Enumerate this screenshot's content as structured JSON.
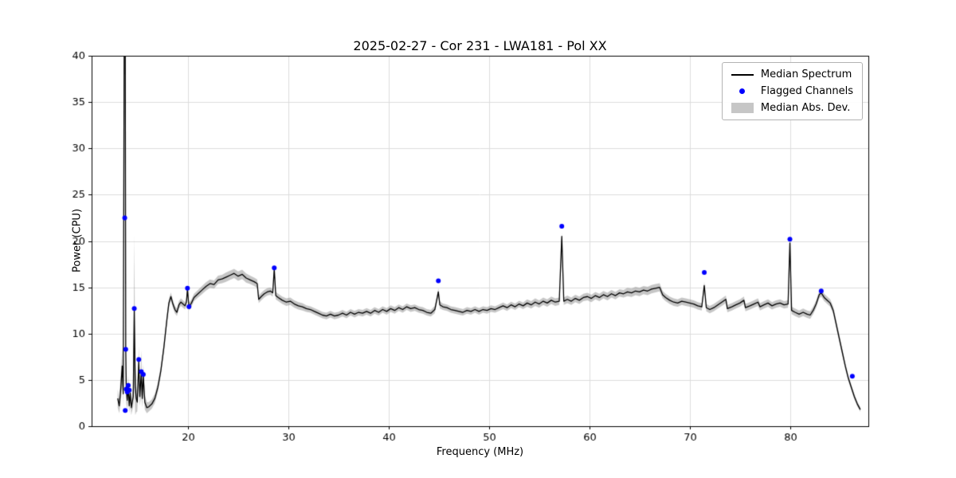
{
  "chart_data": {
    "type": "line",
    "title": "2025-02-27 - Cor 231 - LWA181 - Pol XX",
    "xlabel": "Frequency (MHz)",
    "ylabel": "Power (CPU)",
    "xlim": [
      10.4,
      87.8
    ],
    "ylim": [
      0,
      40
    ],
    "x_ticks": [
      20,
      30,
      40,
      50,
      60,
      70,
      80
    ],
    "y_ticks": [
      0,
      5,
      10,
      15,
      20,
      25,
      30,
      35,
      40
    ],
    "grid": true,
    "grid_color": "#dcdcdc",
    "spine_color": "#000000",
    "median_spectrum": {
      "name": "Median Spectrum",
      "color": "#000000",
      "points": [
        [
          13.0,
          3.0,
          1.0
        ],
        [
          13.15,
          2.2,
          0.8
        ],
        [
          13.3,
          4.0,
          1.5
        ],
        [
          13.45,
          6.5,
          2.0
        ],
        [
          13.55,
          3.5,
          1.2
        ],
        [
          13.65,
          42,
          4
        ],
        [
          13.75,
          42,
          4
        ],
        [
          13.8,
          8.3,
          2.0
        ],
        [
          13.85,
          4.0,
          1.5
        ],
        [
          13.95,
          2.8,
          1.0
        ],
        [
          14.05,
          4.3,
          1.2
        ],
        [
          14.15,
          2.2,
          0.8
        ],
        [
          14.25,
          3.6,
          1.0
        ],
        [
          14.35,
          2.0,
          0.8
        ],
        [
          14.45,
          2.6,
          0.9
        ],
        [
          14.55,
          3.2,
          1.1
        ],
        [
          14.65,
          12.6,
          8.0
        ],
        [
          14.75,
          4.2,
          3.0
        ],
        [
          14.85,
          3.0,
          1.5
        ],
        [
          14.95,
          2.6,
          1.0
        ],
        [
          15.1,
          7.0,
          1.6
        ],
        [
          15.2,
          3.2,
          1.0
        ],
        [
          15.35,
          5.8,
          2.4
        ],
        [
          15.45,
          3.0,
          1.0
        ],
        [
          15.55,
          5.5,
          1.2
        ],
        [
          15.7,
          2.6,
          0.8
        ],
        [
          15.9,
          2.0,
          0.6
        ],
        [
          16.1,
          2.1,
          0.5
        ],
        [
          16.4,
          2.4,
          0.5
        ],
        [
          16.7,
          3.0,
          0.5
        ],
        [
          17.0,
          4.2,
          0.5
        ],
        [
          17.3,
          6.0,
          0.5
        ],
        [
          17.6,
          8.5,
          0.5
        ],
        [
          17.9,
          11.5,
          0.5
        ],
        [
          18.1,
          13.3,
          0.45
        ],
        [
          18.3,
          14.0,
          0.45
        ],
        [
          18.5,
          13.2,
          0.4
        ],
        [
          18.7,
          12.6,
          0.4
        ],
        [
          18.9,
          12.3,
          0.4
        ],
        [
          19.1,
          13.1,
          0.4
        ],
        [
          19.3,
          13.4,
          0.4
        ],
        [
          19.5,
          13.2,
          0.4
        ],
        [
          19.7,
          13.0,
          0.4
        ],
        [
          19.85,
          13.4,
          0.4
        ],
        [
          19.95,
          14.8,
          0.4
        ],
        [
          20.1,
          12.9,
          0.4
        ],
        [
          20.35,
          13.3,
          0.4
        ],
        [
          20.6,
          13.9,
          0.4
        ],
        [
          21.0,
          14.3,
          0.4
        ],
        [
          21.4,
          14.7,
          0.45
        ],
        [
          21.8,
          15.1,
          0.45
        ],
        [
          22.2,
          15.4,
          0.45
        ],
        [
          22.6,
          15.3,
          0.45
        ],
        [
          23.0,
          15.8,
          0.45
        ],
        [
          23.4,
          15.9,
          0.45
        ],
        [
          23.8,
          16.1,
          0.5
        ],
        [
          24.2,
          16.3,
          0.5
        ],
        [
          24.6,
          16.5,
          0.5
        ],
        [
          25.0,
          16.2,
          0.5
        ],
        [
          25.4,
          16.4,
          0.5
        ],
        [
          25.8,
          16.0,
          0.5
        ],
        [
          26.2,
          15.8,
          0.45
        ],
        [
          26.6,
          15.6,
          0.45
        ],
        [
          26.9,
          15.4,
          0.45
        ],
        [
          27.05,
          13.7,
          0.4
        ],
        [
          27.3,
          14.0,
          0.4
        ],
        [
          27.6,
          14.3,
          0.4
        ],
        [
          27.9,
          14.5,
          0.4
        ],
        [
          28.2,
          14.6,
          0.4
        ],
        [
          28.45,
          14.4,
          0.4
        ],
        [
          28.6,
          17.0,
          0.4
        ],
        [
          28.75,
          14.1,
          0.4
        ],
        [
          29.0,
          13.9,
          0.4
        ],
        [
          29.4,
          13.6,
          0.4
        ],
        [
          29.8,
          13.4,
          0.4
        ],
        [
          30.2,
          13.5,
          0.4
        ],
        [
          30.6,
          13.2,
          0.4
        ],
        [
          31.0,
          13.0,
          0.4
        ],
        [
          31.4,
          12.9,
          0.4
        ],
        [
          31.8,
          12.7,
          0.35
        ],
        [
          32.2,
          12.6,
          0.35
        ],
        [
          32.6,
          12.4,
          0.35
        ],
        [
          33.0,
          12.2,
          0.35
        ],
        [
          33.4,
          12.0,
          0.35
        ],
        [
          33.8,
          11.9,
          0.35
        ],
        [
          34.2,
          12.1,
          0.35
        ],
        [
          34.6,
          11.9,
          0.35
        ],
        [
          35.0,
          12.0,
          0.35
        ],
        [
          35.4,
          12.2,
          0.35
        ],
        [
          35.8,
          12.0,
          0.35
        ],
        [
          36.2,
          12.3,
          0.35
        ],
        [
          36.6,
          12.1,
          0.35
        ],
        [
          37.0,
          12.3,
          0.35
        ],
        [
          37.4,
          12.2,
          0.35
        ],
        [
          37.8,
          12.4,
          0.35
        ],
        [
          38.2,
          12.2,
          0.35
        ],
        [
          38.6,
          12.5,
          0.35
        ],
        [
          39.0,
          12.3,
          0.35
        ],
        [
          39.4,
          12.6,
          0.35
        ],
        [
          39.8,
          12.4,
          0.35
        ],
        [
          40.2,
          12.7,
          0.35
        ],
        [
          40.6,
          12.5,
          0.35
        ],
        [
          41.0,
          12.8,
          0.35
        ],
        [
          41.4,
          12.6,
          0.35
        ],
        [
          41.8,
          12.9,
          0.35
        ],
        [
          42.2,
          12.7,
          0.35
        ],
        [
          42.6,
          12.8,
          0.35
        ],
        [
          43.0,
          12.6,
          0.35
        ],
        [
          43.4,
          12.5,
          0.35
        ],
        [
          43.8,
          12.3,
          0.35
        ],
        [
          44.2,
          12.2,
          0.35
        ],
        [
          44.6,
          12.6,
          0.4
        ],
        [
          44.95,
          14.5,
          0.4
        ],
        [
          45.1,
          13.1,
          0.4
        ],
        [
          45.4,
          12.9,
          0.35
        ],
        [
          45.8,
          12.8,
          0.35
        ],
        [
          46.2,
          12.6,
          0.35
        ],
        [
          46.6,
          12.5,
          0.35
        ],
        [
          47.0,
          12.4,
          0.35
        ],
        [
          47.4,
          12.3,
          0.35
        ],
        [
          47.8,
          12.5,
          0.35
        ],
        [
          48.2,
          12.4,
          0.35
        ],
        [
          48.6,
          12.6,
          0.35
        ],
        [
          49.0,
          12.4,
          0.35
        ],
        [
          49.4,
          12.6,
          0.35
        ],
        [
          49.8,
          12.5,
          0.35
        ],
        [
          50.2,
          12.7,
          0.35
        ],
        [
          50.6,
          12.6,
          0.35
        ],
        [
          51.0,
          12.8,
          0.35
        ],
        [
          51.4,
          13.0,
          0.35
        ],
        [
          51.8,
          12.8,
          0.35
        ],
        [
          52.2,
          13.1,
          0.35
        ],
        [
          52.6,
          12.9,
          0.35
        ],
        [
          53.0,
          13.2,
          0.35
        ],
        [
          53.4,
          13.0,
          0.35
        ],
        [
          53.8,
          13.3,
          0.4
        ],
        [
          54.2,
          13.1,
          0.4
        ],
        [
          54.6,
          13.4,
          0.4
        ],
        [
          55.0,
          13.2,
          0.4
        ],
        [
          55.4,
          13.5,
          0.4
        ],
        [
          55.8,
          13.3,
          0.4
        ],
        [
          56.2,
          13.6,
          0.4
        ],
        [
          56.6,
          13.4,
          0.4
        ],
        [
          57.0,
          13.5,
          0.4
        ],
        [
          57.25,
          20.5,
          0.4
        ],
        [
          57.45,
          13.5,
          0.4
        ],
        [
          57.8,
          13.7,
          0.4
        ],
        [
          58.2,
          13.5,
          0.4
        ],
        [
          58.6,
          13.8,
          0.4
        ],
        [
          59.0,
          13.6,
          0.4
        ],
        [
          59.4,
          13.9,
          0.4
        ],
        [
          59.8,
          14.0,
          0.4
        ],
        [
          60.2,
          13.8,
          0.4
        ],
        [
          60.6,
          14.1,
          0.4
        ],
        [
          61.0,
          13.9,
          0.4
        ],
        [
          61.4,
          14.2,
          0.4
        ],
        [
          61.8,
          14.0,
          0.4
        ],
        [
          62.2,
          14.3,
          0.4
        ],
        [
          62.6,
          14.1,
          0.4
        ],
        [
          63.0,
          14.4,
          0.4
        ],
        [
          63.4,
          14.3,
          0.4
        ],
        [
          63.8,
          14.5,
          0.45
        ],
        [
          64.2,
          14.4,
          0.45
        ],
        [
          64.6,
          14.6,
          0.45
        ],
        [
          65.0,
          14.5,
          0.45
        ],
        [
          65.4,
          14.7,
          0.45
        ],
        [
          65.8,
          14.6,
          0.45
        ],
        [
          66.2,
          14.8,
          0.45
        ],
        [
          66.6,
          14.9,
          0.45
        ],
        [
          67.0,
          15.0,
          0.45
        ],
        [
          67.3,
          14.2,
          0.4
        ],
        [
          67.6,
          13.9,
          0.4
        ],
        [
          68.0,
          13.6,
          0.4
        ],
        [
          68.4,
          13.4,
          0.4
        ],
        [
          68.8,
          13.3,
          0.4
        ],
        [
          69.2,
          13.5,
          0.4
        ],
        [
          69.6,
          13.4,
          0.4
        ],
        [
          70.0,
          13.3,
          0.4
        ],
        [
          70.4,
          13.2,
          0.4
        ],
        [
          70.8,
          13.0,
          0.4
        ],
        [
          71.2,
          12.9,
          0.4
        ],
        [
          71.45,
          15.2,
          0.4
        ],
        [
          71.65,
          12.8,
          0.4
        ],
        [
          72.0,
          12.6,
          0.4
        ],
        [
          72.4,
          12.8,
          0.4
        ],
        [
          72.8,
          13.1,
          0.4
        ],
        [
          73.2,
          13.4,
          0.4
        ],
        [
          73.6,
          13.7,
          0.4
        ],
        [
          73.75,
          12.7,
          0.4
        ],
        [
          74.2,
          12.9,
          0.4
        ],
        [
          74.6,
          13.1,
          0.4
        ],
        [
          75.0,
          13.3,
          0.4
        ],
        [
          75.4,
          13.6,
          0.4
        ],
        [
          75.55,
          12.8,
          0.4
        ],
        [
          76.0,
          13.0,
          0.4
        ],
        [
          76.4,
          13.2,
          0.4
        ],
        [
          76.8,
          13.4,
          0.4
        ],
        [
          77.0,
          12.9,
          0.4
        ],
        [
          77.4,
          13.1,
          0.4
        ],
        [
          77.8,
          13.3,
          0.4
        ],
        [
          78.2,
          13.0,
          0.4
        ],
        [
          78.6,
          13.2,
          0.4
        ],
        [
          79.0,
          13.3,
          0.4
        ],
        [
          79.4,
          13.1,
          0.4
        ],
        [
          79.8,
          13.2,
          0.4
        ],
        [
          79.98,
          19.8,
          0.4
        ],
        [
          80.15,
          12.5,
          0.4
        ],
        [
          80.5,
          12.3,
          0.4
        ],
        [
          80.9,
          12.1,
          0.4
        ],
        [
          81.3,
          12.3,
          0.4
        ],
        [
          81.7,
          12.1,
          0.4
        ],
        [
          82.0,
          12.0,
          0.4
        ],
        [
          82.3,
          12.5,
          0.4
        ],
        [
          82.6,
          13.2,
          0.4
        ],
        [
          82.9,
          14.2,
          0.4
        ],
        [
          83.1,
          14.4,
          0.4
        ],
        [
          83.4,
          13.9,
          0.4
        ],
        [
          83.7,
          13.6,
          0.4
        ],
        [
          84.0,
          13.3,
          0.4
        ],
        [
          84.3,
          12.5,
          0.4
        ],
        [
          84.6,
          11.0,
          0.4
        ],
        [
          84.9,
          9.5,
          0.4
        ],
        [
          85.2,
          8.0,
          0.35
        ],
        [
          85.5,
          6.5,
          0.35
        ],
        [
          85.8,
          5.2,
          0.3
        ],
        [
          86.1,
          4.2,
          0.3
        ],
        [
          86.4,
          3.2,
          0.3
        ],
        [
          86.7,
          2.4,
          0.25
        ],
        [
          87.0,
          1.8,
          0.25
        ]
      ]
    },
    "flagged_channels": {
      "name": "Flagged Channels",
      "color": "#0000ff",
      "points": [
        [
          13.7,
          22.5
        ],
        [
          13.8,
          8.3
        ],
        [
          13.75,
          1.7
        ],
        [
          13.85,
          4.0
        ],
        [
          13.95,
          3.7
        ],
        [
          14.05,
          4.4
        ],
        [
          14.15,
          3.9
        ],
        [
          14.65,
          12.7
        ],
        [
          15.1,
          7.2
        ],
        [
          15.35,
          5.9
        ],
        [
          15.55,
          5.6
        ],
        [
          19.95,
          14.9
        ],
        [
          20.1,
          12.9
        ],
        [
          28.6,
          17.1
        ],
        [
          44.95,
          15.7
        ],
        [
          57.25,
          21.6
        ],
        [
          71.45,
          16.6
        ],
        [
          79.98,
          20.2
        ],
        [
          83.1,
          14.6
        ],
        [
          86.2,
          5.4
        ]
      ]
    },
    "mad_band": {
      "name": "Median Abs. Dev.",
      "fill": "rgba(128,128,128,0.45)"
    }
  },
  "legend": {
    "entries": [
      {
        "label": "Median Spectrum",
        "sample": "line",
        "color": "#000000"
      },
      {
        "label": "Flagged Channels",
        "sample": "marker",
        "color": "#0000ff"
      },
      {
        "label": "Median Abs. Dev.",
        "sample": "patch",
        "color": "rgba(128,128,128,0.45)"
      }
    ]
  }
}
